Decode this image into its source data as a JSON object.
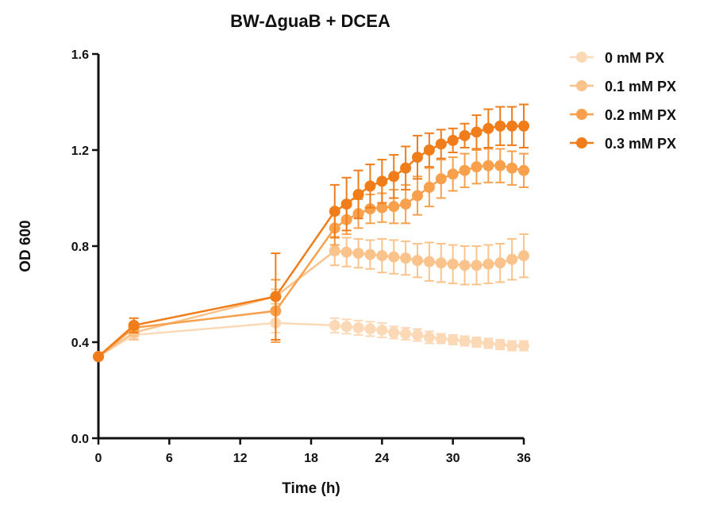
{
  "chart_data": {
    "type": "line",
    "title": "BW-ΔguaB + DCEA",
    "xlabel": "Time (h)",
    "ylabel": "OD 600",
    "xlim": [
      0,
      36
    ],
    "ylim": [
      0,
      1.6
    ],
    "x_ticks": [
      0,
      6,
      12,
      18,
      24,
      30,
      36
    ],
    "y_ticks": [
      0.0,
      0.4,
      0.8,
      1.2,
      1.6
    ],
    "x_tick_labels": [
      "0",
      "6",
      "12",
      "18",
      "24",
      "30",
      "36"
    ],
    "y_tick_labels": [
      "0.0",
      "0.4",
      "0.8",
      "1.2",
      "1.6"
    ],
    "grid": false,
    "legend": "right",
    "series": [
      {
        "name": "0 mM PX",
        "color": "#fbd9b6",
        "x": [
          0,
          3,
          15,
          20,
          21,
          22,
          23,
          24,
          25,
          26,
          27,
          28,
          29,
          30,
          31,
          32,
          33,
          34,
          35,
          36
        ],
        "y": [
          0.34,
          0.43,
          0.48,
          0.47,
          0.465,
          0.46,
          0.455,
          0.45,
          0.44,
          0.435,
          0.43,
          0.42,
          0.415,
          0.41,
          0.405,
          0.4,
          0.395,
          0.39,
          0.385,
          0.385
        ],
        "err": [
          0.01,
          0.02,
          0.04,
          0.03,
          0.03,
          0.03,
          0.03,
          0.03,
          0.025,
          0.025,
          0.025,
          0.025,
          0.02,
          0.02,
          0.02,
          0.02,
          0.02,
          0.02,
          0.02,
          0.02
        ]
      },
      {
        "name": "0.1 mM PX",
        "color": "#fbc38c",
        "x": [
          0,
          3,
          15,
          20,
          21,
          22,
          23,
          24,
          25,
          26,
          27,
          28,
          29,
          30,
          31,
          32,
          33,
          34,
          35,
          36
        ],
        "y": [
          0.34,
          0.44,
          0.59,
          0.78,
          0.775,
          0.77,
          0.765,
          0.76,
          0.755,
          0.75,
          0.74,
          0.735,
          0.73,
          0.725,
          0.72,
          0.72,
          0.725,
          0.73,
          0.745,
          0.76
        ],
        "err": [
          0.01,
          0.03,
          0.03,
          0.06,
          0.06,
          0.06,
          0.06,
          0.07,
          0.07,
          0.07,
          0.07,
          0.08,
          0.08,
          0.08,
          0.08,
          0.08,
          0.08,
          0.08,
          0.085,
          0.09
        ]
      },
      {
        "name": "0.2 mM PX",
        "color": "#f8a04c",
        "x": [
          0,
          3,
          15,
          20,
          21,
          22,
          23,
          24,
          25,
          26,
          27,
          28,
          29,
          30,
          31,
          32,
          33,
          34,
          35,
          36
        ],
        "y": [
          0.34,
          0.46,
          0.53,
          0.875,
          0.91,
          0.935,
          0.955,
          0.96,
          0.965,
          0.975,
          1.01,
          1.045,
          1.08,
          1.1,
          1.115,
          1.13,
          1.135,
          1.135,
          1.125,
          1.115
        ],
        "err": [
          0.01,
          0.02,
          0.13,
          0.07,
          0.06,
          0.06,
          0.06,
          0.06,
          0.07,
          0.08,
          0.08,
          0.08,
          0.08,
          0.07,
          0.07,
          0.07,
          0.07,
          0.07,
          0.07,
          0.07
        ]
      },
      {
        "name": "0.3 mM PX",
        "color": "#f07d1a",
        "x": [
          0,
          3,
          15,
          20,
          21,
          22,
          23,
          24,
          25,
          26,
          27,
          28,
          29,
          30,
          31,
          32,
          33,
          34,
          35,
          36
        ],
        "y": [
          0.34,
          0.47,
          0.59,
          0.945,
          0.975,
          1.015,
          1.05,
          1.07,
          1.09,
          1.125,
          1.17,
          1.2,
          1.225,
          1.24,
          1.26,
          1.275,
          1.29,
          1.3,
          1.3,
          1.3
        ],
        "err": [
          0.01,
          0.03,
          0.18,
          0.11,
          0.11,
          0.1,
          0.09,
          0.09,
          0.09,
          0.09,
          0.09,
          0.07,
          0.06,
          0.05,
          0.05,
          0.07,
          0.08,
          0.08,
          0.08,
          0.09
        ]
      }
    ]
  }
}
